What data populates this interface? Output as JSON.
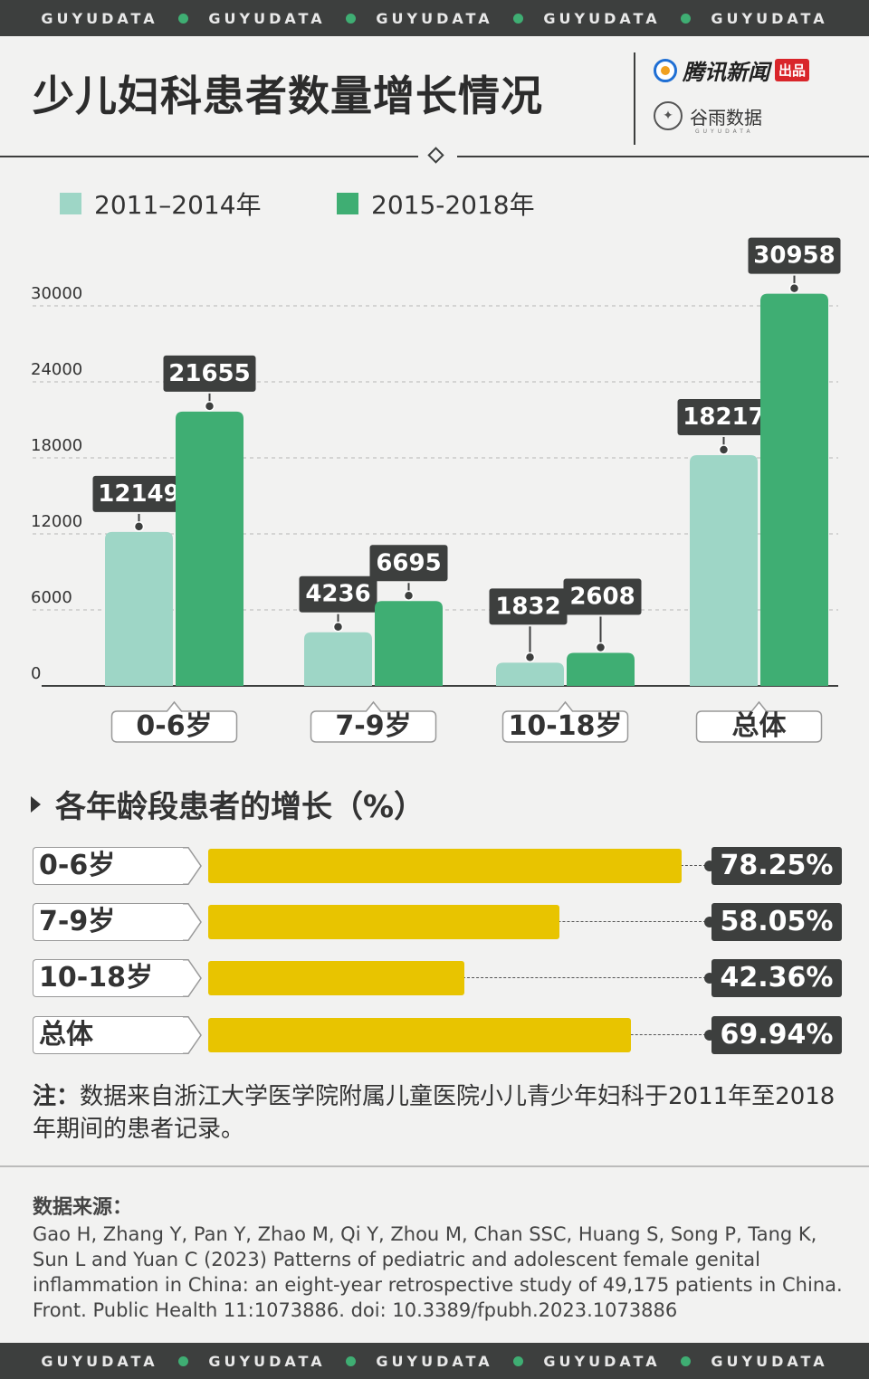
{
  "band_words": [
    "GUYUDATA",
    "GUYUDATA",
    "GUYUDATA",
    "GUYUDATA",
    "GUYUDATA"
  ],
  "header": {
    "title": "少儿妇科患者数量增长情况",
    "logo1_text": "腾讯新闻",
    "logo1_badge": "出品",
    "logo2_text": "谷雨数据",
    "logo2_sub": "GUYUDATA"
  },
  "colors": {
    "light_green": "#9ed6c6",
    "dark_green": "#3fae73",
    "yellow": "#e8c400",
    "dark": "#3d3f3e"
  },
  "legend": {
    "series1": "2011–2014年",
    "series2": "2015-2018年"
  },
  "chart_data": {
    "type": "bar",
    "categories": [
      "0-6岁",
      "7-9岁",
      "10-18岁",
      "总体"
    ],
    "series": [
      {
        "name": "2011–2014年",
        "values": [
          12149,
          4236,
          1832,
          18217
        ]
      },
      {
        "name": "2015-2018年",
        "values": [
          21655,
          6695,
          2608,
          30958
        ]
      }
    ],
    "yticks": [
      0,
      6000,
      12000,
      18000,
      24000,
      30000
    ],
    "ylim": [
      0,
      30000
    ],
    "grid": true,
    "legend": "top-left"
  },
  "growth": {
    "title": "各年龄段患者的增长（%）",
    "rows": [
      {
        "label": "0-6岁",
        "value": 78.25,
        "text": "78.25%"
      },
      {
        "label": "7-9岁",
        "value": 58.05,
        "text": "58.05%"
      },
      {
        "label": "10-18岁",
        "value": 42.36,
        "text": "42.36%"
      },
      {
        "label": "总体",
        "value": 69.94,
        "text": "69.94%"
      }
    ]
  },
  "note": {
    "prefix": "注：",
    "text": "数据来自浙江大学医学院附属儿童医院小儿青少年妇科于2011年至2018年期间的患者记录。"
  },
  "source": {
    "title": "数据来源：",
    "text": "Gao H, Zhang Y, Pan Y, Zhao M, Qi Y, Zhou M, Chan SSC, Huang S, Song P, Tang K, Sun L and Yuan C (2023) Patterns of pediatric and adolescent female genital inflammation in China: an eight-year retrospective study of 49,175 patients in China. Front. Public Health 11:1073886. doi: 10.3389/fpubh.2023.1073886"
  }
}
